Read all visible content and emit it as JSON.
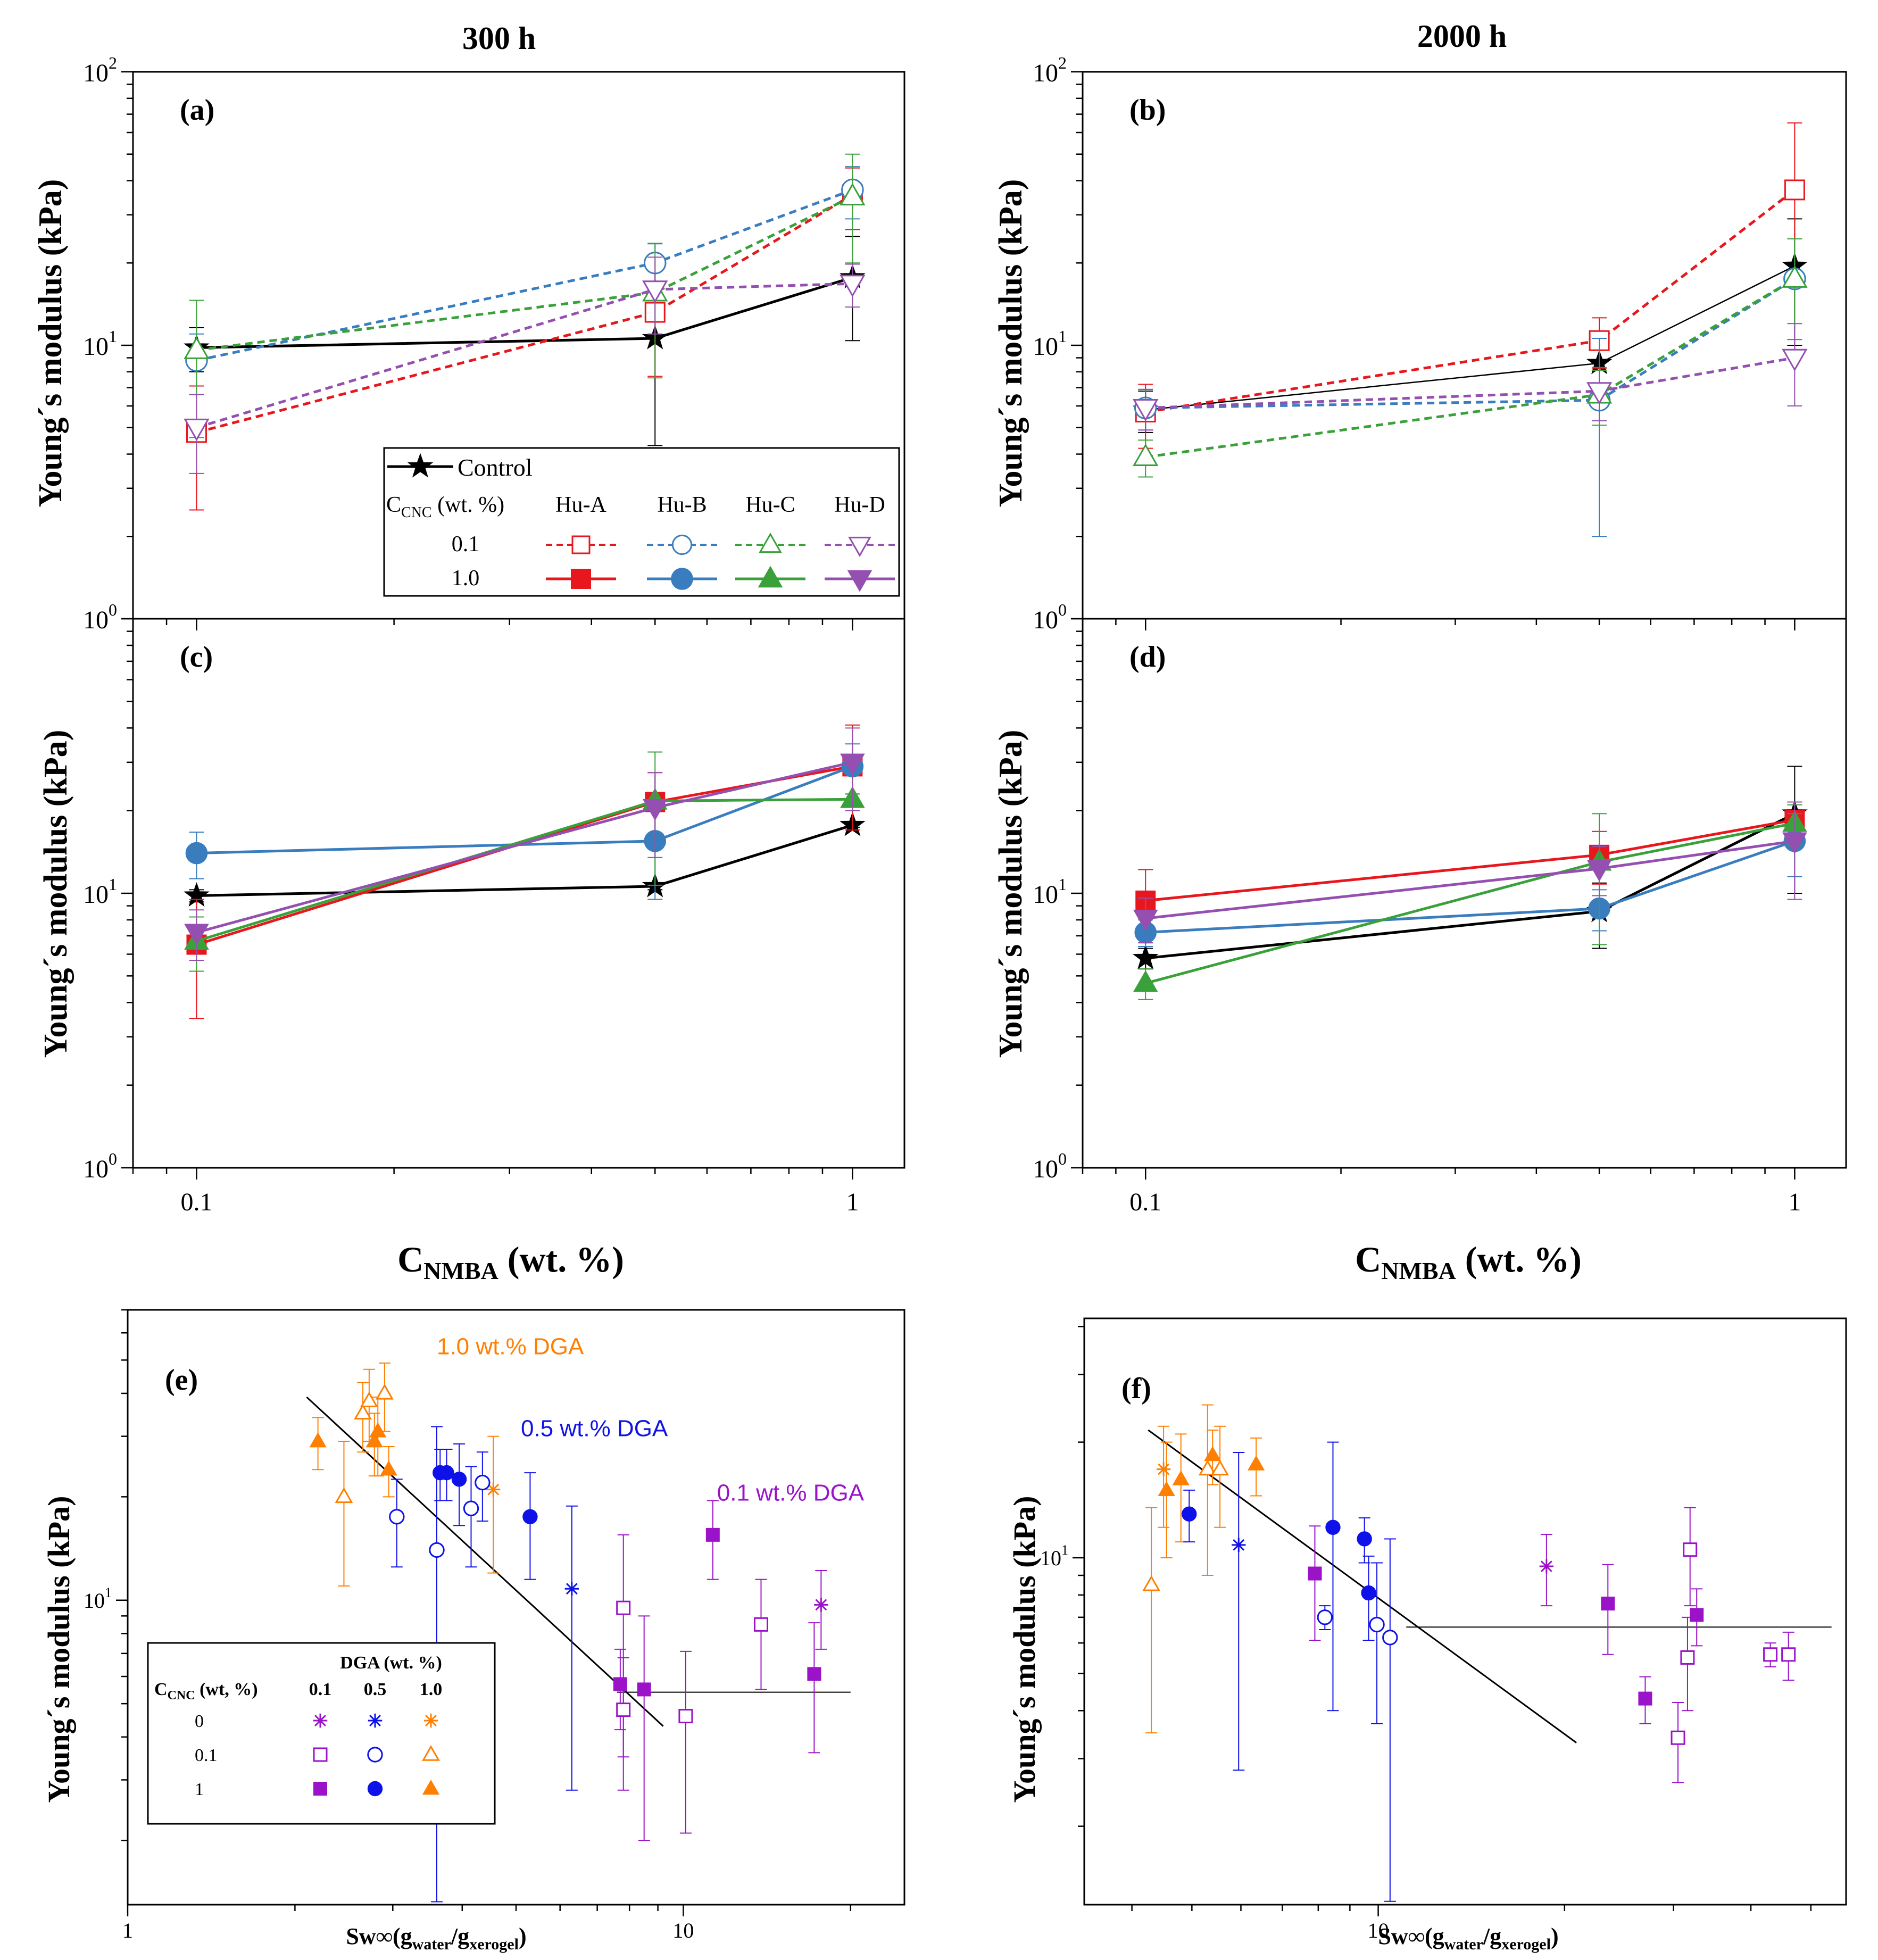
{
  "figure": {
    "column_titles": [
      "300 h",
      "2000 h"
    ],
    "top_xlabel_main": "C",
    "top_xlabel_sub": "NMBA",
    "top_xlabel_rest": " (wt. %)",
    "bottom_xlabel_main": "Sw∞(g",
    "bottom_xlabel_sub1": "water",
    "bottom_xlabel_mid": "/g",
    "bottom_xlabel_sub2": "xerogel",
    "bottom_xlabel_end": ")",
    "ylabel": "Young´s modulus (kPa)"
  },
  "legend_ab": {
    "control_label": "Control",
    "ccnc_main": "C",
    "ccnc_sub": "CNC",
    "ccnc_rest": " (wt. %)",
    "columns": [
      "Hu-A",
      "Hu-B",
      "Hu-C",
      "Hu-D"
    ],
    "rows": [
      "0.1",
      "1.0"
    ]
  },
  "legend_e": {
    "title": "DGA (wt. %)",
    "ccnc_main": "C",
    "ccnc_sub": "CNC",
    "ccnc_rest": " (wt, %)",
    "columns": [
      "0.1",
      "0.5",
      "1.0"
    ],
    "rows": [
      "0",
      "0.1",
      "1"
    ]
  },
  "colors": {
    "Control": "#000000",
    "Hu-A": "#e8161d",
    "Hu-B": "#3a7dbf",
    "Hu-C": "#3aa13a",
    "Hu-D": "#944fb0",
    "dga01": "#9b13c9",
    "dga05": "#0f12e8",
    "dga10": "#ff7f00"
  },
  "chart_data": [
    {
      "panel": "(a)",
      "type": "line",
      "xscale": "log",
      "yscale": "log",
      "xlim": [
        0.08,
        1.2
      ],
      "ylim": [
        1,
        100
      ],
      "xticks": [],
      "yticks": [
        "10^0",
        "10^1",
        "10^2"
      ],
      "x": [
        0.1,
        0.5,
        1.0
      ],
      "series": [
        {
          "name": "Control",
          "values": [
            9.8,
            10.6,
            17.7
          ],
          "err": [
            1.8,
            6.3,
            7.3
          ],
          "style": "solid",
          "marker": "star"
        },
        {
          "name": "Hu-A 0.1",
          "values": [
            4.8,
            13.2,
            35.5
          ],
          "err": [
            2.3,
            5.5,
            9.0
          ],
          "style": "dash",
          "marker": "square-open"
        },
        {
          "name": "Hu-B 0.1",
          "values": [
            8.8,
            20.0,
            37.0
          ],
          "err": [
            2.2,
            3.5,
            8.0
          ],
          "style": "dash",
          "marker": "circle-open"
        },
        {
          "name": "Hu-C 0.1",
          "values": [
            9.6,
            15.6,
            35.0
          ],
          "err": [
            5.0,
            8.0,
            15.0
          ],
          "style": "dash",
          "marker": "triangle-up-open"
        },
        {
          "name": "Hu-D 0.1",
          "values": [
            5.0,
            16.0,
            16.8
          ],
          "err": [
            1.6,
            5.0,
            3.0
          ],
          "style": "dash",
          "marker": "triangle-down-open"
        }
      ]
    },
    {
      "panel": "(b)",
      "type": "line",
      "xscale": "log",
      "yscale": "log",
      "xlim": [
        0.08,
        1.2
      ],
      "ylim": [
        1,
        100
      ],
      "xticks": [],
      "yticks": [
        "10^0",
        "10^1",
        "10^2"
      ],
      "x": [
        0.1,
        0.5,
        1.0
      ],
      "series": [
        {
          "name": "Control",
          "values": [
            5.8,
            8.6,
            19.5
          ],
          "err": [
            1.0,
            2.0,
            9.5
          ],
          "style": "solid-thin",
          "marker": "star"
        },
        {
          "name": "Hu-A 0.1",
          "values": [
            5.7,
            10.4,
            37.0
          ],
          "err": [
            1.5,
            2.2,
            28.0
          ],
          "style": "dash",
          "marker": "square-open"
        },
        {
          "name": "Hu-B 0.1",
          "values": [
            5.9,
            6.3,
            17.5
          ],
          "err": [
            1.0,
            4.3,
            7.0
          ],
          "style": "dash",
          "marker": "circle-open"
        },
        {
          "name": "Hu-C 0.1",
          "values": [
            3.9,
            6.6,
            17.5
          ],
          "err": [
            0.6,
            1.5,
            7.0
          ],
          "style": "dash",
          "marker": "triangle-up-open"
        },
        {
          "name": "Hu-D 0.1",
          "values": [
            5.9,
            6.8,
            9.0
          ],
          "err": [
            1.0,
            1.5,
            3.0
          ],
          "style": "dash",
          "marker": "triangle-down-open"
        }
      ]
    },
    {
      "panel": "(c)",
      "type": "line",
      "xscale": "log",
      "yscale": "log",
      "xlim": [
        0.08,
        1.2
      ],
      "ylim": [
        1,
        100
      ],
      "xticks": [
        "0.1",
        "1"
      ],
      "yticks": [
        "10^0",
        "10^1"
      ],
      "x": [
        0.1,
        0.5,
        1.0
      ],
      "series": [
        {
          "name": "Control",
          "values": [
            9.8,
            10.6,
            17.7
          ],
          "err": [
            0.5,
            0.3,
            0.3
          ],
          "style": "solid",
          "marker": "star"
        },
        {
          "name": "Hu-A 1.0",
          "values": [
            6.5,
            21.5,
            29.0
          ],
          "err": [
            3.0,
            6.0,
            12.0
          ],
          "style": "solid",
          "marker": "square-filled"
        },
        {
          "name": "Hu-B 1.0",
          "values": [
            14.0,
            15.5,
            29.0
          ],
          "err": [
            2.7,
            6.0,
            6.0
          ],
          "style": "solid",
          "marker": "circle-filled"
        },
        {
          "name": "Hu-C 1.0",
          "values": [
            6.7,
            21.7,
            22.0
          ],
          "err": [
            1.5,
            11.0,
            1.0
          ],
          "style": "solid",
          "marker": "triangle-up-filled"
        },
        {
          "name": "Hu-D 1.0",
          "values": [
            7.2,
            20.5,
            30.0
          ],
          "err": [
            1.5,
            7.0,
            10.0
          ],
          "style": "solid",
          "marker": "triangle-down-filled"
        }
      ]
    },
    {
      "panel": "(d)",
      "type": "line",
      "xscale": "log",
      "yscale": "log",
      "xlim": [
        0.08,
        1.2
      ],
      "ylim": [
        1,
        100
      ],
      "xticks": [
        "0.1",
        "1"
      ],
      "yticks": [
        "10^0",
        "10^1"
      ],
      "x": [
        0.1,
        0.5,
        1.0
      ],
      "series": [
        {
          "name": "Control",
          "values": [
            5.8,
            8.6,
            19.5
          ],
          "err": [
            0.5,
            2.3,
            9.5
          ],
          "style": "solid",
          "marker": "star"
        },
        {
          "name": "Hu-A 1.0",
          "values": [
            9.4,
            13.8,
            18.5
          ],
          "err": [
            2.8,
            3.0,
            3.0
          ],
          "style": "solid",
          "marker": "square-filled"
        },
        {
          "name": "Hu-B 1.0",
          "values": [
            7.2,
            8.8,
            15.5
          ],
          "err": [
            0.8,
            1.5,
            4.0
          ],
          "style": "solid",
          "marker": "circle-filled"
        },
        {
          "name": "Hu-C 1.0",
          "values": [
            4.7,
            13.0,
            18.0
          ],
          "err": [
            0.6,
            6.5,
            3.0
          ],
          "style": "solid",
          "marker": "triangle-up-filled"
        },
        {
          "name": "Hu-D 1.0",
          "values": [
            8.1,
            12.3,
            15.5
          ],
          "err": [
            1.5,
            2.5,
            6.0
          ],
          "style": "solid",
          "marker": "triangle-down-filled"
        }
      ]
    },
    {
      "panel": "(e)",
      "type": "scatter",
      "xscale": "log",
      "yscale": "log",
      "xlim": [
        1,
        25
      ],
      "ylim": [
        1.3,
        70
      ],
      "xticks": [
        "1",
        "10"
      ],
      "yticks": [
        "10^1"
      ],
      "annotations": [
        {
          "text": "1.0 wt.% DGA",
          "color": "dga10",
          "x": 3.6,
          "y": 52
        },
        {
          "text": "0.5 wt.% DGA",
          "color": "dga05",
          "x": 5.1,
          "y": 30
        },
        {
          "text": "0.1 wt.% DGA",
          "color": "dga01",
          "x": 11.5,
          "y": 19.5
        }
      ],
      "fit_lines": [
        {
          "x": [
            2.1,
            9.2
          ],
          "y": [
            39,
            4.3
          ]
        },
        {
          "x": [
            7.6,
            20.0
          ],
          "y": [
            5.4,
            5.4
          ]
        }
      ],
      "points": [
        {
          "x": 2.2,
          "y": 29,
          "err": 5,
          "group": "dga10",
          "cnc": "1"
        },
        {
          "x": 2.45,
          "y": 20,
          "err": 9,
          "group": "dga10",
          "cnc": "0.1"
        },
        {
          "x": 2.65,
          "y": 35,
          "err": 8,
          "group": "dga10",
          "cnc": "0.1"
        },
        {
          "x": 2.72,
          "y": 38,
          "err": 9,
          "group": "dga10",
          "cnc": "0.1"
        },
        {
          "x": 2.78,
          "y": 29,
          "err": 6,
          "group": "dga10",
          "cnc": "1"
        },
        {
          "x": 2.82,
          "y": 31,
          "err": 8,
          "group": "dga10",
          "cnc": "1"
        },
        {
          "x": 2.9,
          "y": 40,
          "err": 9,
          "group": "dga10",
          "cnc": "0.1"
        },
        {
          "x": 2.95,
          "y": 24,
          "err": 4,
          "group": "dga10",
          "cnc": "1"
        },
        {
          "x": 4.55,
          "y": 21,
          "err": 9,
          "group": "dga10",
          "cnc": "0"
        },
        {
          "x": 3.05,
          "y": 17.5,
          "err": 5,
          "group": "dga05",
          "cnc": "0.1"
        },
        {
          "x": 3.6,
          "y": 14,
          "err": 18,
          "group": "dga05",
          "cnc": "0.1"
        },
        {
          "x": 3.65,
          "y": 23.5,
          "err": 4,
          "group": "dga05",
          "cnc": "1"
        },
        {
          "x": 3.75,
          "y": 23.5,
          "err": 4,
          "group": "dga05",
          "cnc": "1"
        },
        {
          "x": 3.95,
          "y": 22.5,
          "err": 6,
          "group": "dga05",
          "cnc": "1"
        },
        {
          "x": 4.15,
          "y": 18.5,
          "err": 6,
          "group": "dga05",
          "cnc": "0.1"
        },
        {
          "x": 4.35,
          "y": 22,
          "err": 5,
          "group": "dga05",
          "cnc": "0.1"
        },
        {
          "x": 5.3,
          "y": 17.5,
          "err": 6,
          "group": "dga05",
          "cnc": "1"
        },
        {
          "x": 6.3,
          "y": 10.8,
          "err": 8,
          "group": "dga05",
          "cnc": "0"
        },
        {
          "x": 7.7,
          "y": 5.7,
          "err": 1.5,
          "group": "dga01",
          "cnc": "1"
        },
        {
          "x": 7.8,
          "y": 9.5,
          "err": 6,
          "group": "dga01",
          "cnc": "0.1"
        },
        {
          "x": 7.8,
          "y": 4.8,
          "err": 2,
          "group": "dga01",
          "cnc": "0.1"
        },
        {
          "x": 8.5,
          "y": 5.5,
          "err": 3.5,
          "group": "dga01",
          "cnc": "1"
        },
        {
          "x": 10.1,
          "y": 4.6,
          "err": 2.5,
          "group": "dga01",
          "cnc": "0.1"
        },
        {
          "x": 11.3,
          "y": 15.5,
          "err": 4,
          "group": "dga01",
          "cnc": "1"
        },
        {
          "x": 13.8,
          "y": 8.5,
          "err": 3,
          "group": "dga01",
          "cnc": "0.1"
        },
        {
          "x": 17.2,
          "y": 6.1,
          "err": 2.5,
          "group": "dga01",
          "cnc": "1"
        },
        {
          "x": 17.7,
          "y": 9.7,
          "err": 2.5,
          "group": "dga01",
          "cnc": "0"
        }
      ]
    },
    {
      "panel": "(f)",
      "type": "scatter",
      "xscale": "log",
      "yscale": "log",
      "xlim": [
        3.35,
        57
      ],
      "ylim": [
        1.25,
        42
      ],
      "xticks": [
        "10"
      ],
      "yticks": [
        "10^1"
      ],
      "fit_lines": [
        {
          "x": [
            4.25,
            20.9
          ],
          "y": [
            21.5,
            3.3
          ]
        },
        {
          "x": [
            11.1,
            54
          ],
          "y": [
            6.6,
            6.6
          ]
        }
      ],
      "points": [
        {
          "x": 4.5,
          "y": 17,
          "err": 5,
          "group": "dga10",
          "cnc": "0"
        },
        {
          "x": 4.3,
          "y": 8.5,
          "err": 5,
          "group": "dga10",
          "cnc": "0.1"
        },
        {
          "x": 4.55,
          "y": 15,
          "err": 5,
          "group": "dga10",
          "cnc": "1"
        },
        {
          "x": 4.8,
          "y": 16,
          "err": 5,
          "group": "dga10",
          "cnc": "1"
        },
        {
          "x": 5.3,
          "y": 17,
          "err": 8,
          "group": "dga10",
          "cnc": "0.1"
        },
        {
          "x": 5.4,
          "y": 18.5,
          "err": 3,
          "group": "dga10",
          "cnc": "1"
        },
        {
          "x": 5.55,
          "y": 17,
          "err": 5,
          "group": "dga10",
          "cnc": "0.1"
        },
        {
          "x": 6.35,
          "y": 17.5,
          "err": 3,
          "group": "dga10",
          "cnc": "1"
        },
        {
          "x": 4.95,
          "y": 13,
          "err": 2,
          "group": "dga05",
          "cnc": "1"
        },
        {
          "x": 5.95,
          "y": 10.8,
          "err": 8,
          "group": "dga05",
          "cnc": "0"
        },
        {
          "x": 8.2,
          "y": 7,
          "err": 0.5,
          "group": "dga05",
          "cnc": "0.1"
        },
        {
          "x": 8.45,
          "y": 12,
          "err": 8,
          "group": "dga05",
          "cnc": "1"
        },
        {
          "x": 9.5,
          "y": 11.2,
          "err": 1.5,
          "group": "dga05",
          "cnc": "1"
        },
        {
          "x": 9.65,
          "y": 8.1,
          "err": 2,
          "group": "dga05",
          "cnc": "1"
        },
        {
          "x": 9.95,
          "y": 6.7,
          "err": 3,
          "group": "dga05",
          "cnc": "0.1"
        },
        {
          "x": 10.45,
          "y": 6.2,
          "err": 5,
          "group": "dga05",
          "cnc": "0.1"
        },
        {
          "x": 7.9,
          "y": 9.1,
          "err": 3,
          "group": "dga01",
          "cnc": "1"
        },
        {
          "x": 18.7,
          "y": 9.5,
          "err": 2,
          "group": "dga01",
          "cnc": "0"
        },
        {
          "x": 23.5,
          "y": 7.6,
          "err": 2,
          "group": "dga01",
          "cnc": "1"
        },
        {
          "x": 27.0,
          "y": 4.3,
          "err": 0.6,
          "group": "dga01",
          "cnc": "1"
        },
        {
          "x": 30.5,
          "y": 3.4,
          "err": 0.8,
          "group": "dga01",
          "cnc": "0.1"
        },
        {
          "x": 31.6,
          "y": 5.5,
          "err": 1.5,
          "group": "dga01",
          "cnc": "0.1"
        },
        {
          "x": 31.9,
          "y": 10.5,
          "err": 3,
          "group": "dga01",
          "cnc": "0.1"
        },
        {
          "x": 32.7,
          "y": 7.1,
          "err": 1.2,
          "group": "dga01",
          "cnc": "1"
        },
        {
          "x": 43.0,
          "y": 5.6,
          "err": 0.4,
          "group": "dga01",
          "cnc": "0.1"
        },
        {
          "x": 46.0,
          "y": 5.6,
          "err": 0.8,
          "group": "dga01",
          "cnc": "0.1"
        }
      ]
    }
  ]
}
